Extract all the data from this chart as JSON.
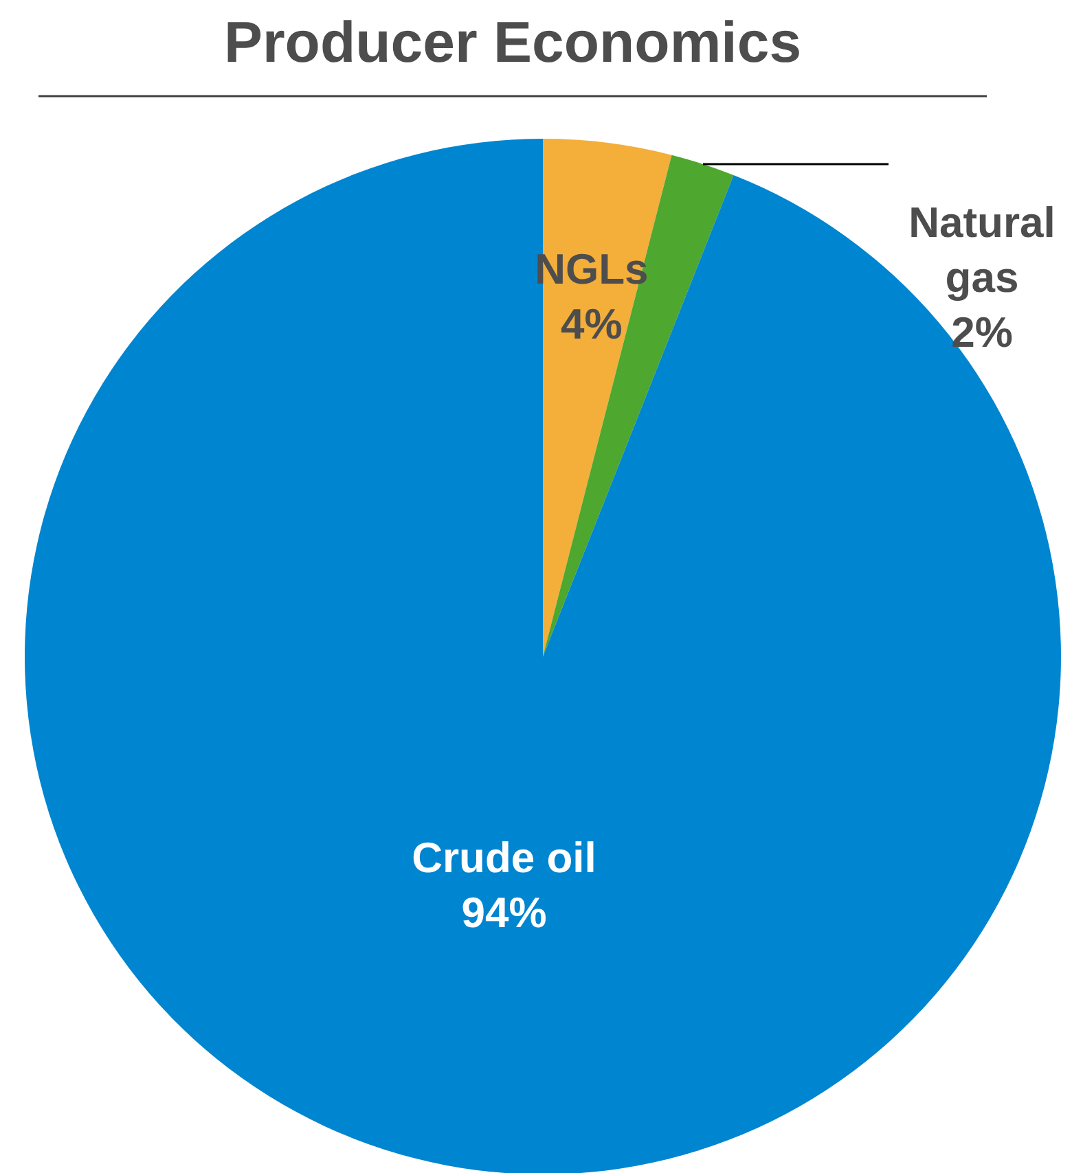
{
  "chart_data": {
    "type": "pie",
    "title": "Producer Economics",
    "categories": [
      "NGLs",
      "Natural gas",
      "Crude oil"
    ],
    "values": [
      4,
      2,
      94
    ],
    "value_labels": [
      "4%",
      "2%",
      "94%"
    ],
    "colors": [
      "#f4ae3a",
      "#4ea72e",
      "#0085d0"
    ]
  }
}
